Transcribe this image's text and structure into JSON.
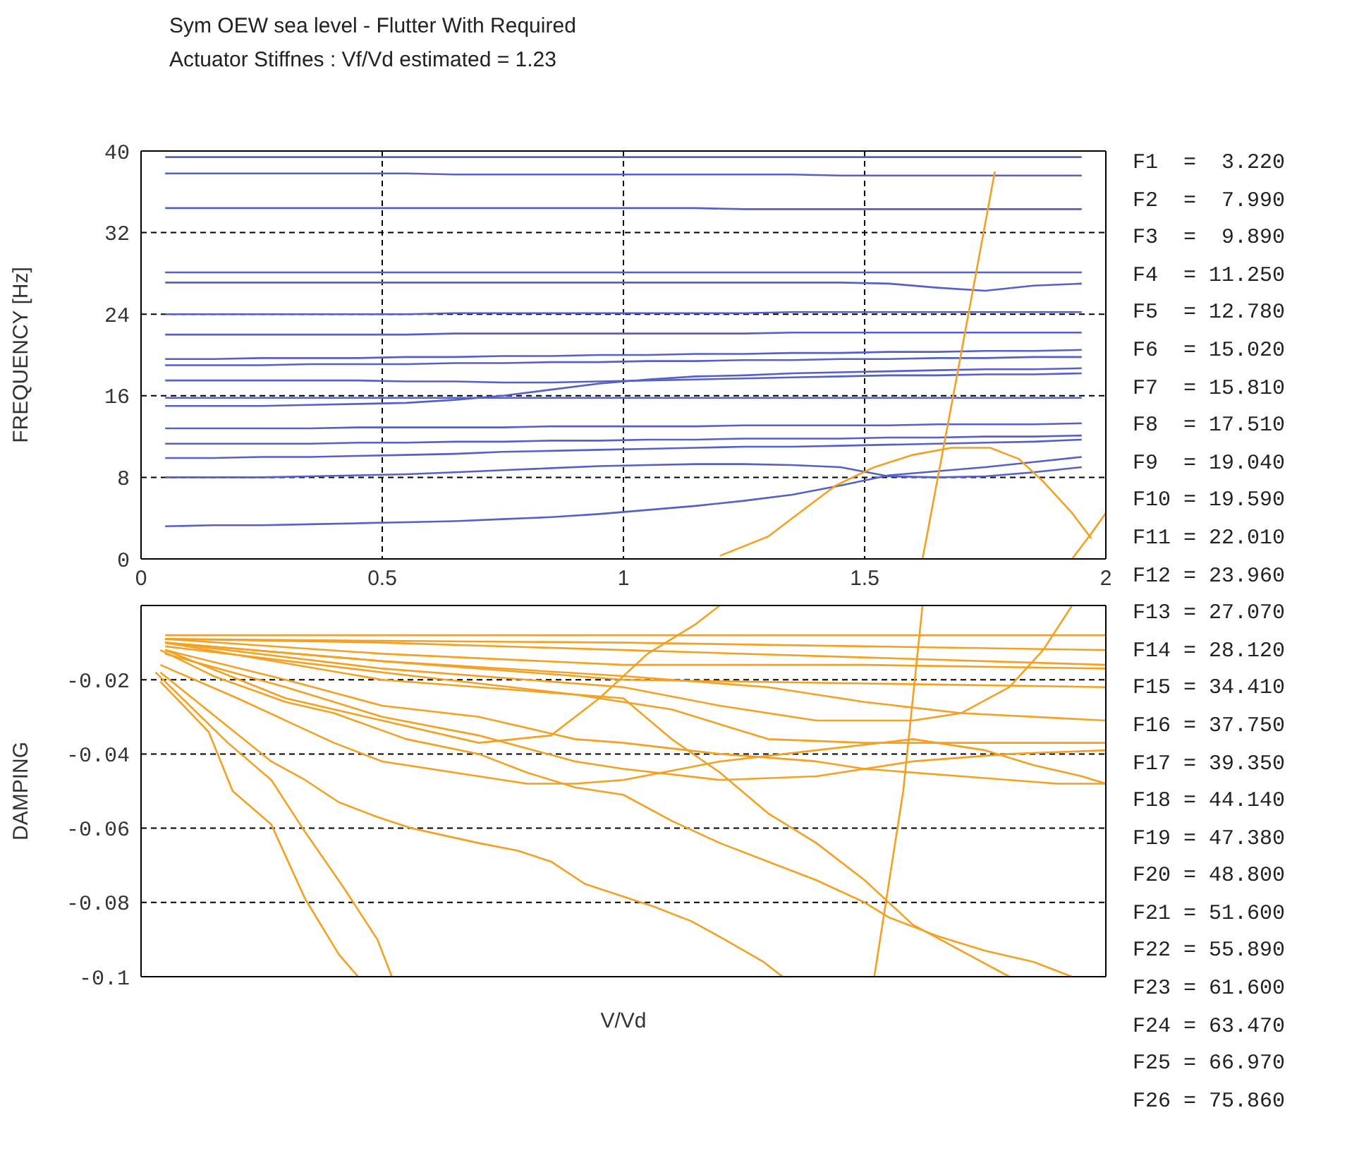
{
  "chart_data": [
    {
      "type": "line",
      "title": "Sym OEW sea level - Flutter With Required",
      "subtitle": "Actuator Stiffnes : Vf/Vd estimated = 1.23",
      "ylabel": "FREQUENCY [Hz]",
      "xlim": [
        0,
        2
      ],
      "xticks": [
        0,
        0.5,
        1,
        1.5,
        2
      ],
      "ylim": [
        0,
        40
      ],
      "yticks": [
        0,
        8,
        16,
        24,
        32,
        40
      ],
      "grid": true,
      "x": [
        0.05,
        0.15,
        0.25,
        0.35,
        0.45,
        0.55,
        0.65,
        0.75,
        0.85,
        0.95,
        1.05,
        1.15,
        1.25,
        1.35,
        1.45,
        1.55,
        1.65,
        1.75,
        1.85,
        1.95
      ],
      "series": [
        {
          "color": "#5560c8",
          "values": [
            3.2,
            3.3,
            3.3,
            3.4,
            3.5,
            3.6,
            3.7,
            3.9,
            4.1,
            4.4,
            4.8,
            5.2,
            5.7,
            6.3,
            7.2,
            8.2,
            8.6,
            9.0,
            9.5,
            10.0
          ]
        },
        {
          "color": "#5560c8",
          "values": [
            8.0,
            8.0,
            8.0,
            8.1,
            8.2,
            8.3,
            8.5,
            8.7,
            8.9,
            9.1,
            9.2,
            9.3,
            9.3,
            9.2,
            9.0,
            8.1,
            8.0,
            8.1,
            8.5,
            9.0
          ]
        },
        {
          "color": "#5560c8",
          "values": [
            9.9,
            9.9,
            10.0,
            10.0,
            10.1,
            10.2,
            10.3,
            10.5,
            10.6,
            10.7,
            10.8,
            10.9,
            11.0,
            11.0,
            11.1,
            11.2,
            11.3,
            11.4,
            11.5,
            11.7
          ]
        },
        {
          "color": "#5560c8",
          "values": [
            11.3,
            11.3,
            11.3,
            11.3,
            11.4,
            11.4,
            11.5,
            11.5,
            11.6,
            11.6,
            11.7,
            11.7,
            11.8,
            11.8,
            11.8,
            11.9,
            11.9,
            12.0,
            12.0,
            12.1
          ]
        },
        {
          "color": "#5560c8",
          "values": [
            12.8,
            12.8,
            12.8,
            12.8,
            12.9,
            12.9,
            12.9,
            12.9,
            13.0,
            13.0,
            13.0,
            13.0,
            13.1,
            13.1,
            13.1,
            13.1,
            13.2,
            13.2,
            13.2,
            13.3
          ]
        },
        {
          "color": "#5560c8",
          "values": [
            15.0,
            15.0,
            15.0,
            15.1,
            15.2,
            15.3,
            15.6,
            16.0,
            16.6,
            17.2,
            17.6,
            17.9,
            18.0,
            18.2,
            18.3,
            18.4,
            18.5,
            18.6,
            18.6,
            18.7
          ]
        },
        {
          "color": "#5560c8",
          "values": [
            15.8,
            15.8,
            15.8,
            15.8,
            15.8,
            15.8,
            15.8,
            15.8,
            15.8,
            15.8,
            15.8,
            15.8,
            15.8,
            15.8,
            15.8,
            15.8,
            15.8,
            15.8,
            15.8,
            15.8
          ]
        },
        {
          "color": "#5560c8",
          "values": [
            17.5,
            17.5,
            17.5,
            17.5,
            17.5,
            17.4,
            17.4,
            17.3,
            17.3,
            17.4,
            17.5,
            17.6,
            17.7,
            17.8,
            17.9,
            18.0,
            18.0,
            18.1,
            18.1,
            18.2
          ]
        },
        {
          "color": "#5560c8",
          "values": [
            19.0,
            19.0,
            19.0,
            19.1,
            19.1,
            19.1,
            19.2,
            19.2,
            19.3,
            19.3,
            19.4,
            19.4,
            19.5,
            19.5,
            19.6,
            19.6,
            19.7,
            19.7,
            19.8,
            19.8
          ]
        },
        {
          "color": "#5560c8",
          "values": [
            19.6,
            19.6,
            19.7,
            19.7,
            19.7,
            19.8,
            19.8,
            19.9,
            19.9,
            20.0,
            20.0,
            20.1,
            20.1,
            20.2,
            20.2,
            20.3,
            20.3,
            20.4,
            20.4,
            20.5
          ]
        },
        {
          "color": "#5560c8",
          "values": [
            22.0,
            22.0,
            22.0,
            22.0,
            22.0,
            22.0,
            22.1,
            22.1,
            22.1,
            22.1,
            22.1,
            22.1,
            22.1,
            22.2,
            22.2,
            22.2,
            22.2,
            22.2,
            22.2,
            22.2
          ]
        },
        {
          "color": "#5560c8",
          "values": [
            24.0,
            24.0,
            24.0,
            24.0,
            24.0,
            24.0,
            24.1,
            24.1,
            24.1,
            24.1,
            24.1,
            24.1,
            24.1,
            24.2,
            24.2,
            24.2,
            24.2,
            24.2,
            24.2,
            24.2
          ]
        },
        {
          "color": "#5560c8",
          "values": [
            27.1,
            27.1,
            27.1,
            27.1,
            27.1,
            27.1,
            27.1,
            27.1,
            27.1,
            27.1,
            27.1,
            27.1,
            27.1,
            27.1,
            27.1,
            27.0,
            26.6,
            26.3,
            26.8,
            27.0
          ]
        },
        {
          "color": "#5560c8",
          "values": [
            28.1,
            28.1,
            28.1,
            28.1,
            28.1,
            28.1,
            28.1,
            28.1,
            28.1,
            28.1,
            28.1,
            28.1,
            28.1,
            28.1,
            28.1,
            28.1,
            28.1,
            28.1,
            28.1,
            28.1
          ]
        },
        {
          "color": "#5560c8",
          "values": [
            34.4,
            34.4,
            34.4,
            34.4,
            34.4,
            34.4,
            34.4,
            34.4,
            34.4,
            34.4,
            34.4,
            34.4,
            34.3,
            34.3,
            34.3,
            34.3,
            34.3,
            34.3,
            34.3,
            34.3
          ]
        },
        {
          "color": "#5560c8",
          "values": [
            37.8,
            37.8,
            37.8,
            37.8,
            37.8,
            37.8,
            37.7,
            37.7,
            37.7,
            37.7,
            37.7,
            37.7,
            37.7,
            37.7,
            37.6,
            37.6,
            37.6,
            37.6,
            37.6,
            37.6
          ]
        },
        {
          "color": "#5560c8",
          "values": [
            39.4,
            39.4,
            39.4,
            39.4,
            39.4,
            39.4,
            39.4,
            39.4,
            39.4,
            39.4,
            39.4,
            39.4,
            39.4,
            39.4,
            39.4,
            39.4,
            39.4,
            39.4,
            39.4,
            39.4
          ]
        },
        {
          "color": "#f5a020",
          "x": [
            1.2,
            1.3,
            1.37,
            1.44,
            1.52,
            1.6,
            1.68,
            1.76,
            1.82,
            1.87,
            1.93,
            1.97
          ],
          "values": [
            0.3,
            2.2,
            4.7,
            7.2,
            9.0,
            10.2,
            10.9,
            10.9,
            9.8,
            7.6,
            4.5,
            2.0
          ]
        },
        {
          "color": "#f5a020",
          "x": [
            1.62,
            1.69,
            1.77
          ],
          "values": [
            0,
            17.6,
            38
          ]
        },
        {
          "color": "#f5a020",
          "x": [
            1.93,
            1.97,
            2.0
          ],
          "values": [
            0,
            2.5,
            4.5
          ]
        }
      ]
    },
    {
      "type": "line",
      "ylabel": "DAMPING",
      "xlabel": "V/Vd",
      "xlim": [
        0,
        2
      ],
      "xticks": [
        0,
        0.5,
        1,
        1.5,
        2
      ],
      "ylim": [
        -0.1,
        0
      ],
      "yticks": [
        -0.1,
        -0.08,
        -0.06,
        -0.04,
        -0.02
      ],
      "grid": true,
      "tick_labels": "y",
      "series": [
        {
          "color": "#f5a020",
          "x": [
            0.05,
            0.25,
            0.45,
            0.65,
            0.85,
            1.05,
            1.25,
            1.45,
            1.65,
            1.85,
            2.0
          ],
          "values": [
            -0.008,
            -0.008,
            -0.008,
            -0.008,
            -0.008,
            -0.008,
            -0.008,
            -0.008,
            -0.008,
            -0.008,
            -0.008
          ]
        },
        {
          "color": "#f5a020",
          "x": [
            0.05,
            0.5,
            1.0,
            1.5,
            2.0
          ],
          "values": [
            -0.009,
            -0.0095,
            -0.01,
            -0.011,
            -0.012
          ]
        },
        {
          "color": "#f5a020",
          "x": [
            0.05,
            0.5,
            1.0,
            1.5,
            2.0
          ],
          "values": [
            -0.009,
            -0.01,
            -0.012,
            -0.014,
            -0.016
          ]
        },
        {
          "color": "#f5a020",
          "x": [
            0.05,
            0.5,
            1.0,
            1.5,
            2.0
          ],
          "values": [
            -0.009,
            -0.013,
            -0.016,
            -0.016,
            -0.017
          ]
        },
        {
          "color": "#f5a020",
          "x": [
            0.05,
            0.5,
            1.0,
            1.5,
            2.0
          ],
          "values": [
            -0.01,
            -0.015,
            -0.02,
            -0.021,
            -0.022
          ]
        },
        {
          "color": "#f5a020",
          "x": [
            0.05,
            0.5,
            1.0,
            1.3,
            1.5,
            1.7,
            2.0
          ],
          "values": [
            -0.01,
            -0.015,
            -0.019,
            -0.022,
            -0.026,
            -0.029,
            -0.031
          ]
        },
        {
          "color": "#f5a020",
          "x": [
            0.05,
            0.5,
            1.0,
            1.2,
            1.4,
            1.6,
            1.7,
            1.8,
            1.87,
            1.93
          ],
          "values": [
            -0.01,
            -0.017,
            -0.022,
            -0.027,
            -0.031,
            -0.031,
            -0.029,
            -0.022,
            -0.012,
            0
          ]
        },
        {
          "color": "#f5a020",
          "x": [
            0.05,
            0.5,
            0.9,
            1.1,
            1.3,
            1.5,
            1.7,
            1.9,
            2.0
          ],
          "values": [
            -0.011,
            -0.018,
            -0.024,
            -0.028,
            -0.036,
            -0.037,
            -0.037,
            -0.037,
            -0.037
          ]
        },
        {
          "color": "#f5a020",
          "x": [
            0.05,
            0.3,
            0.5,
            0.7,
            0.9,
            1.0,
            1.2,
            1.4,
            1.5,
            1.7,
            1.9,
            2.0
          ],
          "values": [
            -0.012,
            -0.02,
            -0.027,
            -0.03,
            -0.036,
            -0.037,
            -0.04,
            -0.042,
            -0.044,
            -0.046,
            -0.048,
            -0.048
          ]
        },
        {
          "color": "#f5a020",
          "x": [
            0.05,
            0.3,
            0.5,
            0.7,
            0.9,
            1.0,
            1.2,
            1.4,
            1.5,
            1.6,
            1.8,
            2.0
          ],
          "values": [
            -0.013,
            -0.022,
            -0.03,
            -0.035,
            -0.042,
            -0.044,
            -0.047,
            -0.046,
            -0.044,
            -0.042,
            -0.04,
            -0.039
          ]
        },
        {
          "color": "#f5a020",
          "x": [
            0.05,
            0.3,
            0.5,
            0.7,
            0.85,
            0.95,
            1.05,
            1.15,
            1.2
          ],
          "values": [
            -0.012,
            -0.025,
            -0.031,
            -0.037,
            -0.035,
            -0.025,
            -0.013,
            -0.005,
            0
          ]
        },
        {
          "color": "#f5a020",
          "x": [
            0.04,
            0.2,
            0.3,
            0.4,
            0.5,
            0.6,
            0.7,
            0.8,
            0.9,
            1.0,
            1.2,
            1.4,
            1.6,
            1.75,
            1.85,
            1.95,
            2.0
          ],
          "values": [
            -0.016,
            -0.025,
            -0.031,
            -0.037,
            -0.042,
            -0.044,
            -0.046,
            -0.048,
            -0.048,
            -0.047,
            -0.042,
            -0.039,
            -0.036,
            -0.039,
            -0.043,
            -0.046,
            -0.048
          ]
        },
        {
          "color": "#f5a020",
          "x": [
            0.05,
            0.5,
            1.0,
            1.1,
            1.2,
            1.3,
            1.4,
            1.5,
            1.6,
            1.7,
            1.8
          ],
          "values": [
            -0.01,
            -0.02,
            -0.025,
            -0.036,
            -0.045,
            -0.056,
            -0.064,
            -0.074,
            -0.086,
            -0.093,
            -0.1
          ]
        },
        {
          "color": "#f5a020",
          "x": [
            0.04,
            0.15,
            0.3,
            0.4,
            0.55,
            0.7,
            0.8,
            0.9,
            1.0,
            1.1,
            1.2,
            1.3,
            1.4,
            1.5,
            1.55,
            1.65,
            1.75,
            1.85,
            1.93
          ],
          "values": [
            -0.012,
            -0.019,
            -0.026,
            -0.029,
            -0.036,
            -0.04,
            -0.045,
            -0.049,
            -0.051,
            -0.058,
            -0.064,
            -0.069,
            -0.074,
            -0.08,
            -0.084,
            -0.089,
            -0.093,
            -0.096,
            -0.1
          ]
        },
        {
          "color": "#f5a020",
          "x": [
            0.04,
            0.27,
            0.34,
            0.41,
            0.49,
            0.56,
            0.63,
            0.7,
            0.78,
            0.85,
            0.92,
            0.99,
            1.06,
            1.14,
            1.21,
            1.29,
            1.33
          ],
          "values": [
            -0.018,
            -0.042,
            -0.047,
            -0.053,
            -0.057,
            -0.06,
            -0.062,
            -0.064,
            -0.066,
            -0.069,
            -0.075,
            -0.078,
            -0.081,
            -0.085,
            -0.09,
            -0.096,
            -0.1
          ]
        },
        {
          "color": "#f5a020",
          "x": [
            0.03,
            0.18,
            0.27,
            0.34,
            0.42,
            0.49,
            0.52
          ],
          "values": [
            -0.018,
            -0.037,
            -0.047,
            -0.061,
            -0.076,
            -0.09,
            -0.1
          ]
        },
        {
          "color": "#f5a020",
          "x": [
            0.04,
            0.14,
            0.19,
            0.27,
            0.34,
            0.41,
            0.45
          ],
          "values": [
            -0.0205,
            -0.034,
            -0.05,
            -0.059,
            -0.079,
            -0.094,
            -0.1
          ]
        },
        {
          "color": "#f5a020",
          "x": [
            1.52,
            1.58,
            1.62
          ],
          "values": [
            -0.1,
            -0.05,
            0
          ]
        }
      ]
    },
    {
      "type": "other",
      "annotations": [
        "F1  =  3.220",
        "F2  =  7.990",
        "F3  =  9.890",
        "F4  = 11.250",
        "F5  = 12.780",
        "F6  = 15.020",
        "F7  = 15.810",
        "F8  = 17.510",
        "F9  = 19.040",
        "F10 = 19.590",
        "F11 = 22.010",
        "F12 = 23.960",
        "F13 = 27.070",
        "F14 = 28.120",
        "F15 = 34.410",
        "F16 = 37.750",
        "F17 = 39.350",
        "F18 = 44.140",
        "F19 = 47.380",
        "F20 = 48.800",
        "F21 = 51.600",
        "F22 = 55.890",
        "F23 = 61.600",
        "F24 = 63.470",
        "F25 = 66.970",
        "F26 = 75.860"
      ]
    }
  ]
}
